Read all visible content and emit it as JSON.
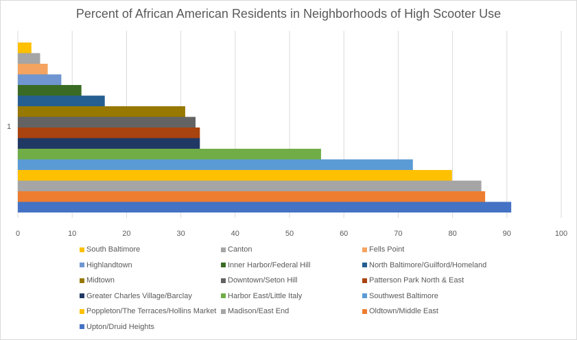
{
  "chart_data": {
    "type": "bar",
    "orientation": "horizontal",
    "title": "Percent of African American Residents in Neighborhoods of High Scooter Use",
    "categories": [
      "1"
    ],
    "xlim": [
      0,
      100
    ],
    "x_ticks": [
      "0",
      "10",
      "20",
      "30",
      "40",
      "50",
      "60",
      "70",
      "80",
      "90",
      "100"
    ],
    "grid": "vertical",
    "legend_position": "bottom",
    "series": [
      {
        "name": "South Baltimore",
        "value": 2.5,
        "color": "#ffc000"
      },
      {
        "name": "Canton",
        "value": 4.1,
        "color": "#a5a5a5"
      },
      {
        "name": "Fells Point",
        "value": 5.5,
        "color": "#f4a460"
      },
      {
        "name": "Highlandtown",
        "value": 8.0,
        "color": "#6f96d1"
      },
      {
        "name": "Inner Harbor/Federal Hill",
        "value": 11.7,
        "color": "#3a6b24"
      },
      {
        "name": "North Baltimore/Guilford/Homeland",
        "value": 16.0,
        "color": "#255e91"
      },
      {
        "name": "Midtown",
        "value": 30.8,
        "color": "#977800"
      },
      {
        "name": "Downtown/Seton Hill",
        "value": 32.7,
        "color": "#636363"
      },
      {
        "name": "Patterson Park North & East",
        "value": 33.5,
        "color": "#a9430f"
      },
      {
        "name": "Greater Charles Village/Barclay",
        "value": 33.5,
        "color": "#203864"
      },
      {
        "name": "Harbor East/Little Italy",
        "value": 55.8,
        "color": "#70ad47"
      },
      {
        "name": "Southwest Baltimore",
        "value": 72.7,
        "color": "#5b9bd5"
      },
      {
        "name": "Poppleton/The Terraces/Hollins Market",
        "value": 79.9,
        "color": "#ffc000"
      },
      {
        "name": "Madison/East End",
        "value": 85.3,
        "color": "#a5a5a5"
      },
      {
        "name": "Oldtown/Middle East",
        "value": 86.0,
        "color": "#ed7d31"
      },
      {
        "name": "Upton/Druid Heights",
        "value": 90.8,
        "color": "#4472c4"
      }
    ]
  }
}
